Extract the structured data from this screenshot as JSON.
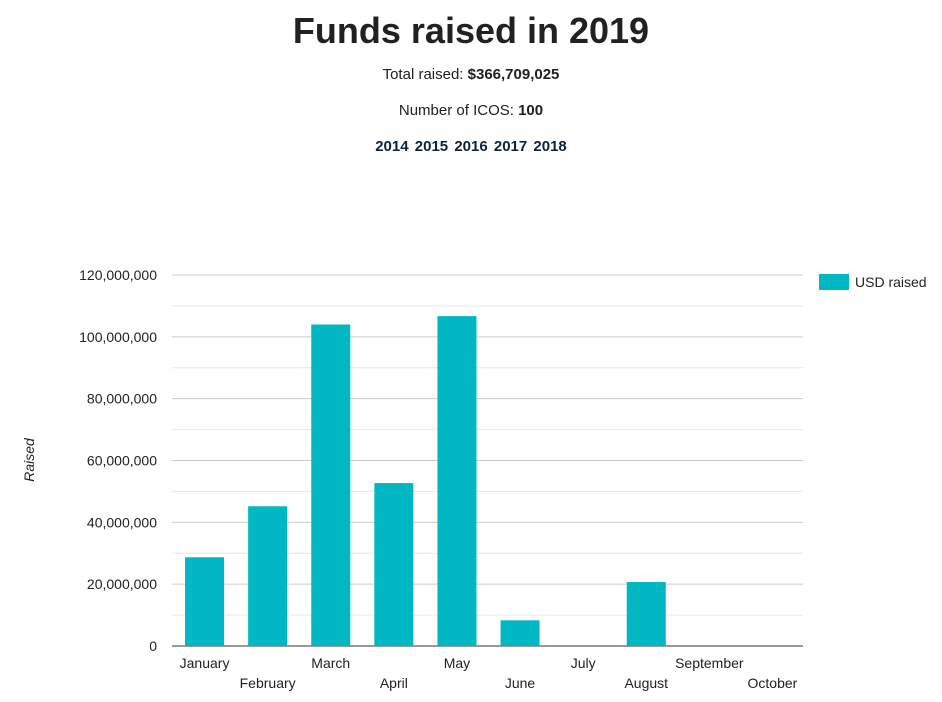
{
  "header": {
    "title": "Funds raised in 2019",
    "total_label": "Total raised:",
    "total_value": "$366,709,025",
    "icos_label": "Number of ICOS:",
    "icos_value": "100",
    "years": [
      "2014",
      "2015",
      "2016",
      "2017",
      "2018"
    ]
  },
  "colors": {
    "bar": "#00b7c3",
    "grid": "#cccccc",
    "minor_grid": "#e6e6e6",
    "axis_text": "#222222",
    "year_link": "#0d2240"
  },
  "chart_data": {
    "type": "bar",
    "title": "Funds raised in 2019",
    "xlabel": "",
    "ylabel": "Raised",
    "ylim": [
      0,
      120000000
    ],
    "yticks": [
      0,
      20000000,
      40000000,
      60000000,
      80000000,
      100000000,
      120000000
    ],
    "ytick_labels": [
      "0",
      "20,000,000",
      "40,000,000",
      "60,000,000",
      "80,000,000",
      "100,000,000",
      "120,000,000"
    ],
    "categories": [
      "January",
      "February",
      "March",
      "April",
      "May",
      "June",
      "July",
      "August",
      "September",
      "October"
    ],
    "series": [
      {
        "name": "USD raised",
        "values": [
          28700000,
          45200000,
          104000000,
          52700000,
          106700000,
          8300000,
          0,
          20700000,
          0,
          0
        ]
      }
    ],
    "legend": "right",
    "grid": true
  }
}
